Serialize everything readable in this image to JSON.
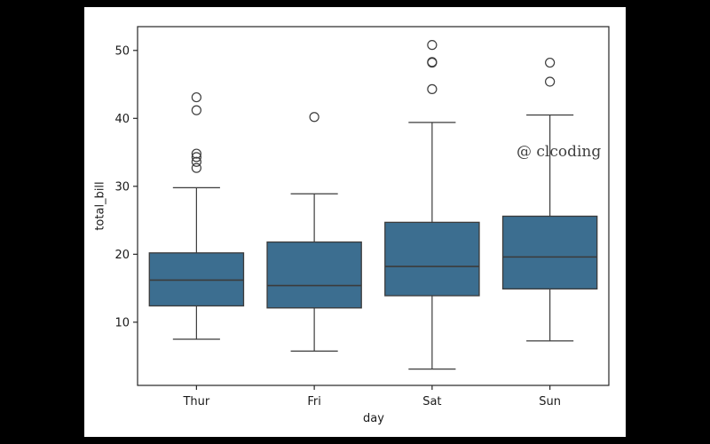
{
  "watermark": "@ clcoding",
  "chart_data": {
    "type": "boxplot",
    "title": "",
    "xlabel": "day",
    "ylabel": "total_bill",
    "categories": [
      "Thur",
      "Fri",
      "Sat",
      "Sun"
    ],
    "ylim": [
      0.7,
      53.5
    ],
    "yticks": [
      10,
      20,
      30,
      40,
      50
    ],
    "grid": false,
    "box_fill_color": "#3c6e90",
    "edge_color": "#3b3b3b",
    "series": [
      {
        "category": "Thur",
        "whisker_low": 7.5,
        "q1": 12.4,
        "median": 16.2,
        "q3": 20.2,
        "whisker_high": 29.8,
        "outliers": [
          32.7,
          33.6,
          34.3,
          34.8,
          41.2,
          43.1
        ]
      },
      {
        "category": "Fri",
        "whisker_low": 5.75,
        "q1": 12.1,
        "median": 15.4,
        "q3": 21.8,
        "whisker_high": 28.9,
        "outliers": [
          40.2
        ]
      },
      {
        "category": "Sat",
        "whisker_low": 3.1,
        "q1": 13.9,
        "median": 18.2,
        "q3": 24.7,
        "whisker_high": 39.4,
        "outliers": [
          44.3,
          48.2,
          48.3,
          50.8
        ]
      },
      {
        "category": "Sun",
        "whisker_low": 7.25,
        "q1": 14.9,
        "median": 19.6,
        "q3": 25.6,
        "whisker_high": 40.5,
        "outliers": [
          45.4,
          48.2
        ]
      }
    ]
  }
}
